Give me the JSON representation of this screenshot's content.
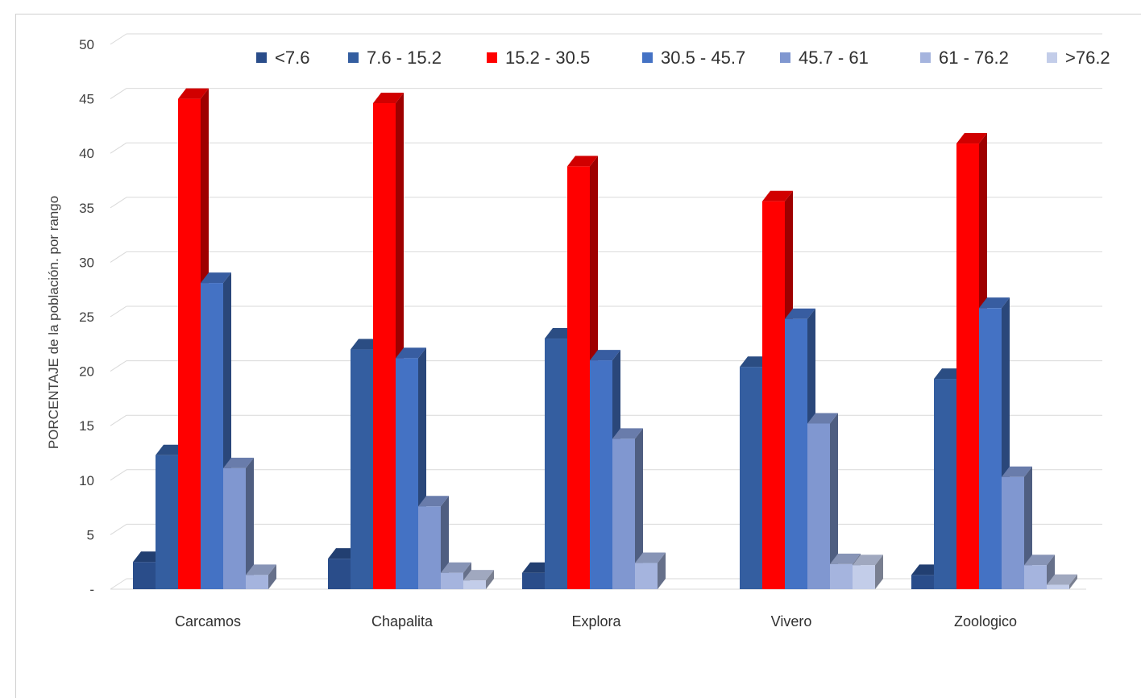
{
  "chart_data": {
    "type": "bar",
    "title": "",
    "xlabel": "",
    "ylabel": "PORCENTAJE de la población. por rango",
    "ylim": [
      0,
      50
    ],
    "yticks": [
      0,
      5,
      10,
      15,
      20,
      25,
      30,
      35,
      40,
      45,
      50
    ],
    "ytick_labels": [
      "-",
      "5",
      "10",
      "15",
      "20",
      "25",
      "30",
      "35",
      "40",
      "45",
      "50"
    ],
    "grid": true,
    "legend_position": "top",
    "categories": [
      "Carcamos",
      "Chapalita",
      "Explora",
      "Vivero",
      "Zoologico"
    ],
    "series": [
      {
        "name": "<7.6",
        "color": "#2a4d8a",
        "values": [
          2.5,
          2.8,
          1.5,
          0,
          1.3
        ]
      },
      {
        "name": "7.6 - 15.2",
        "color": "#345ea0",
        "values": [
          12.3,
          22.0,
          23.0,
          20.4,
          19.3
        ]
      },
      {
        "name": "15.2 - 30.5",
        "color": "#ff0000",
        "values": [
          45.0,
          44.6,
          38.8,
          35.6,
          40.9
        ]
      },
      {
        "name": "30.5 - 45.7",
        "color": "#4472c4",
        "values": [
          28.1,
          21.2,
          21.0,
          24.8,
          25.8
        ]
      },
      {
        "name": "45.7 - 61",
        "color": "#8097d0",
        "values": [
          11.1,
          7.6,
          13.8,
          15.2,
          10.3
        ]
      },
      {
        "name": "61 - 76.2",
        "color": "#a5b4de",
        "values": [
          1.3,
          1.5,
          2.4,
          2.3,
          2.2
        ]
      },
      {
        "name": ">76.2",
        "color": "#c3cde9",
        "values": [
          0,
          0.8,
          0,
          2.2,
          0.4
        ]
      }
    ]
  }
}
